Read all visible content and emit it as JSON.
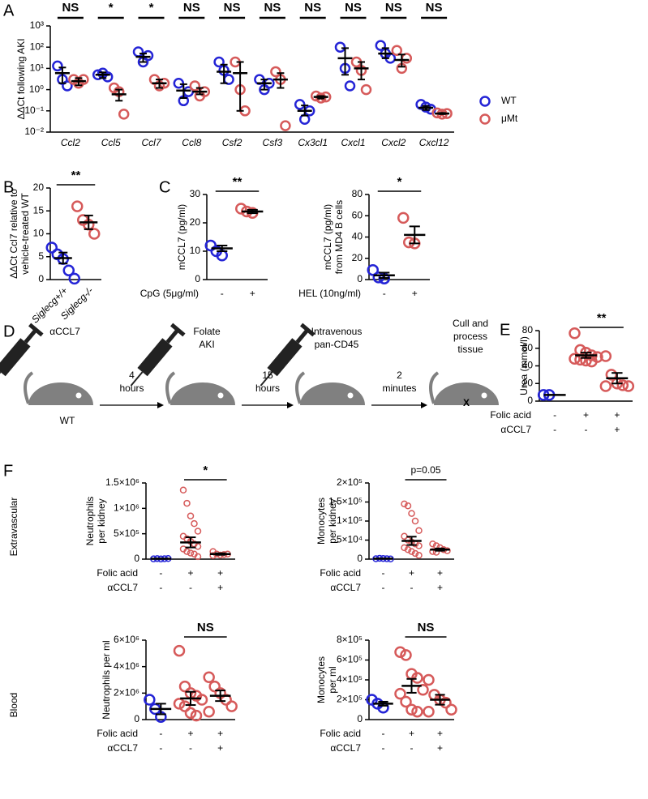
{
  "chart_data": [
    {
      "type": "strip",
      "panel": "A",
      "log": true,
      "ylabel": [
        "ΔΔCt following AKI"
      ],
      "categories": [
        "Ccl2",
        "Ccl5",
        "Ccl7",
        "Ccl8",
        "Csf2",
        "Csf3",
        "Cx3cl1",
        "Cxcl1",
        "Cxcl2",
        "Cxcl12"
      ],
      "significance": [
        "NS",
        "*",
        "*",
        "NS",
        "NS",
        "NS",
        "NS",
        "NS",
        "NS",
        "NS"
      ],
      "ylim": [
        0.01,
        1000
      ],
      "yticks": [
        {
          "value": 0.01,
          "label": "10⁻²"
        },
        {
          "value": 0.1,
          "label": "10⁻¹"
        },
        {
          "value": 1,
          "label": "10⁰"
        },
        {
          "value": 10,
          "label": "10¹"
        },
        {
          "value": 100,
          "label": "10²"
        },
        {
          "value": 1000,
          "label": "10³"
        }
      ],
      "series": [
        {
          "name": "WT",
          "color": "#2424d6",
          "values": [
            [
              13,
              3,
              1.5
            ],
            [
              5,
              6,
              4
            ],
            [
              60,
              20,
              40
            ],
            [
              2,
              0.3,
              0.8
            ],
            [
              20,
              8,
              3
            ],
            [
              3,
              1,
              2
            ],
            [
              0.2,
              0.04,
              0.1
            ],
            [
              100,
              10,
              1.5
            ],
            [
              120,
              50,
              30
            ],
            [
              0.2,
              0.15,
              0.12
            ]
          ],
          "means": [
            6,
            5,
            35,
            0.9,
            7,
            2,
            0.1,
            30,
            50,
            0.14
          ],
          "lower": [
            2,
            3.5,
            20,
            0.4,
            2,
            1,
            0.06,
            5,
            30,
            0.11
          ],
          "upper": [
            11,
            6.5,
            50,
            1.8,
            15,
            3,
            0.18,
            90,
            90,
            0.17
          ]
        },
        {
          "name": "μMt",
          "color": "#d65a5a",
          "values": [
            [
              3,
              2,
              3
            ],
            [
              1.2,
              0.8,
              0.07
            ],
            [
              3,
              1.5,
              2
            ],
            [
              1.5,
              0.5,
              0.8
            ],
            [
              20,
              1,
              0.1
            ],
            [
              7,
              3,
              0.02
            ],
            [
              0.5,
              0.4,
              0.45
            ],
            [
              20,
              8,
              1
            ],
            [
              70,
              10,
              30
            ],
            [
              0.08,
              0.07,
              0.075
            ]
          ],
          "means": [
            2.5,
            0.6,
            2,
            0.8,
            6,
            3,
            0.45,
            10,
            25,
            0.075
          ],
          "lower": [
            1.6,
            0.3,
            1.2,
            0.6,
            0.1,
            1.2,
            0.38,
            3,
            12,
            0.07
          ],
          "upper": [
            3.5,
            1,
            3,
            1.2,
            20,
            6,
            0.5,
            20,
            45,
            0.08
          ]
        }
      ]
    },
    {
      "type": "dot",
      "panel": "B",
      "ylabel": [
        "ΔΔCt Ccl7 relative to",
        "vehicle-treated WT"
      ],
      "categories": [
        "Siglecg+/+",
        "Siglecg-/-"
      ],
      "ylim": [
        0,
        20
      ],
      "yticks": [
        0,
        5,
        10,
        15,
        20
      ],
      "groups": [
        {
          "color": "#2424d6",
          "values": [
            7,
            5.5,
            4.5,
            2,
            0.2
          ],
          "mean": 4.7,
          "sem": 1.2
        },
        {
          "color": "#d65a5a",
          "values": [
            16,
            13,
            12,
            10
          ],
          "mean": 12.5,
          "sem": 1.5
        }
      ],
      "significance": [
        {
          "groups": [
            0,
            1
          ],
          "label": "**"
        }
      ]
    },
    {
      "type": "dot",
      "panel": "C",
      "ylabel": [
        "mCCL7 (pg/ml)"
      ],
      "ylim": [
        0,
        30
      ],
      "yticks": [
        0,
        10,
        20,
        30
      ],
      "conditions": [
        {
          "label": "CpG (5μg/ml)",
          "marks": [
            "-",
            "+"
          ]
        }
      ],
      "groups": [
        {
          "color": "#2424d6",
          "values": [
            12,
            10,
            8.5
          ],
          "mean": 11,
          "sem": 1
        },
        {
          "color": "#d65a5a",
          "values": [
            25,
            24,
            23.5
          ],
          "mean": 24,
          "sem": 0.6
        }
      ],
      "significance": [
        {
          "groups": [
            0,
            1
          ],
          "label": "**"
        }
      ]
    },
    {
      "type": "dot",
      "ylabel": [
        "mCCL7 (pg/ml)",
        "from MD4 B cells"
      ],
      "ylim": [
        0,
        80
      ],
      "yticks": [
        0,
        20,
        40,
        60,
        80
      ],
      "conditions": [
        {
          "label": "HEL (10ng/ml)",
          "marks": [
            "-",
            "+"
          ]
        }
      ],
      "groups": [
        {
          "color": "#2424d6",
          "values": [
            9,
            2,
            1
          ],
          "mean": 4,
          "sem": 2.5
        },
        {
          "color": "#d65a5a",
          "values": [
            58,
            35,
            34
          ],
          "mean": 42,
          "sem": 8
        }
      ],
      "significance": [
        {
          "groups": [
            0,
            1
          ],
          "label": "*"
        }
      ]
    },
    {
      "type": "dot",
      "panel": "E",
      "ylabel": [
        "Urea (mmol/l)"
      ],
      "ylim": [
        0,
        80
      ],
      "yticks": [
        0,
        20,
        40,
        60,
        80
      ],
      "conditions": [
        {
          "label": "Folic acid",
          "marks": [
            "-",
            "+",
            "+"
          ]
        },
        {
          "label": "αCCL7",
          "marks": [
            "-",
            "-",
            "+"
          ]
        }
      ],
      "groups": [
        {
          "color": "#2424d6",
          "values": [
            7,
            7
          ],
          "mean": 7,
          "sem": 0
        },
        {
          "color": "#d65a5a",
          "values": [
            77,
            58,
            55,
            52,
            50,
            48,
            47,
            46,
            45
          ],
          "mean": 52,
          "sem": 3
        },
        {
          "color": "#d65a5a",
          "values": [
            51,
            30,
            20,
            18,
            17,
            17
          ],
          "mean": 26,
          "sem": 6
        }
      ],
      "significance": [
        {
          "groups": [
            1,
            2
          ],
          "label": "**"
        }
      ]
    },
    {
      "type": "dot",
      "panel": "F",
      "row_label": "Extravascular",
      "ylabel": [
        "Neutrophils",
        "per kidney"
      ],
      "ylim": [
        0,
        1500000
      ],
      "yticks": [
        0,
        {
          "value": 500000,
          "label": "5×10⁵"
        },
        {
          "value": 1000000,
          "label": "1×10⁶"
        },
        {
          "value": 1500000,
          "label": "1.5×10⁶"
        }
      ],
      "conditions": [
        {
          "label": "Folic acid",
          "marks": [
            "-",
            "+",
            "+"
          ]
        },
        {
          "label": "αCCL7",
          "marks": [
            "-",
            "-",
            "+"
          ]
        }
      ],
      "groups": [
        {
          "color": "#2424d6",
          "values": [
            5000,
            10000,
            3000,
            8000,
            12000
          ],
          "mean": 8000,
          "sem": 2000
        },
        {
          "color": "#d65a5a",
          "values": [
            1360000,
            1100000,
            850000,
            700000,
            550000,
            450000,
            400000,
            350000,
            300000,
            250000,
            200000,
            150000,
            120000,
            100000,
            50000
          ],
          "mean": 330000,
          "sem": 100000
        },
        {
          "color": "#d65a5a",
          "values": [
            150000,
            100000,
            80000,
            90000,
            100000,
            70000
          ],
          "mean": 100000,
          "sem": 15000
        }
      ],
      "significance": [
        {
          "groups": [
            1,
            2
          ],
          "label": "*"
        }
      ]
    },
    {
      "type": "dot",
      "ylabel": [
        "Monocytes",
        "per kidney"
      ],
      "ylim": [
        0,
        200000
      ],
      "yticks": [
        0,
        {
          "value": 50000,
          "label": "5×10⁴"
        },
        {
          "value": 100000,
          "label": "1×10⁵"
        },
        {
          "value": 150000,
          "label": "1.5×10⁵"
        },
        {
          "value": 200000,
          "label": "2×10⁵"
        }
      ],
      "conditions": [
        {
          "label": "Folic acid",
          "marks": [
            "-",
            "+",
            "+"
          ]
        },
        {
          "label": "αCCL7",
          "marks": [
            "-",
            "-",
            "+"
          ]
        }
      ],
      "groups": [
        {
          "color": "#2424d6",
          "values": [
            1000,
            2000,
            1500,
            1000,
            500
          ],
          "mean": 1200,
          "sem": 300
        },
        {
          "color": "#d65a5a",
          "values": [
            145000,
            140000,
            120000,
            100000,
            75000,
            60000,
            50000,
            45000,
            40000,
            35000,
            30000,
            25000,
            20000,
            15000,
            10000
          ],
          "mean": 48000,
          "sem": 11000
        },
        {
          "color": "#d65a5a",
          "values": [
            40000,
            35000,
            30000,
            25000,
            22000,
            20000,
            18000
          ],
          "mean": 25000,
          "sem": 3000
        }
      ],
      "significance": [
        {
          "groups": [
            1,
            2
          ],
          "label": "p=0.05"
        }
      ]
    },
    {
      "type": "dot",
      "row_label": "Blood",
      "ylabel": [
        "Neutrophils per ml"
      ],
      "ylim": [
        0,
        6000000
      ],
      "yticks": [
        0,
        {
          "value": 2000000,
          "label": "2×10⁶"
        },
        {
          "value": 4000000,
          "label": "4×10⁶"
        },
        {
          "value": 6000000,
          "label": "6×10⁶"
        }
      ],
      "conditions": [
        {
          "label": "Folic acid",
          "marks": [
            "-",
            "+",
            "+"
          ]
        },
        {
          "label": "αCCL7",
          "marks": [
            "-",
            "-",
            "+"
          ]
        }
      ],
      "groups": [
        {
          "color": "#2424d6",
          "values": [
            1500000,
            800000,
            200000
          ],
          "mean": 800000,
          "sem": 400000
        },
        {
          "color": "#d65a5a",
          "values": [
            5200000,
            2500000,
            2000000,
            1800000,
            1500000,
            1200000,
            1000000,
            500000,
            300000
          ],
          "mean": 1600000,
          "sem": 500000
        },
        {
          "color": "#d65a5a",
          "values": [
            3200000,
            2500000,
            2000000,
            1500000,
            1000000,
            600000
          ],
          "mean": 1800000,
          "sem": 400000
        }
      ],
      "significance": [
        {
          "groups": [
            1,
            2
          ],
          "label": "NS"
        }
      ]
    },
    {
      "type": "dot",
      "ylabel": [
        "Monocytes",
        "per ml"
      ],
      "ylim": [
        0,
        800000
      ],
      "yticks": [
        0,
        {
          "value": 200000,
          "label": "2×10⁵"
        },
        {
          "value": 400000,
          "label": "4×10⁵"
        },
        {
          "value": 600000,
          "label": "6×10⁵"
        },
        {
          "value": 800000,
          "label": "8×10⁵"
        }
      ],
      "conditions": [
        {
          "label": "Folic acid",
          "marks": [
            "-",
            "+",
            "+"
          ]
        },
        {
          "label": "αCCL7",
          "marks": [
            "-",
            "-",
            "+"
          ]
        }
      ],
      "groups": [
        {
          "color": "#2424d6",
          "values": [
            200000,
            160000,
            120000
          ],
          "mean": 160000,
          "sem": 20000
        },
        {
          "color": "#d65a5a",
          "values": [
            680000,
            650000,
            460000,
            420000,
            300000,
            260000,
            180000,
            100000,
            80000
          ],
          "mean": 340000,
          "sem": 70000
        },
        {
          "color": "#d65a5a",
          "values": [
            400000,
            250000,
            200000,
            170000,
            100000,
            80000
          ],
          "mean": 200000,
          "sem": 50000
        }
      ],
      "significance": [
        {
          "groups": [
            1,
            2
          ],
          "label": "NS"
        }
      ]
    }
  ],
  "diagram": {
    "panel": "D",
    "steps": [
      {
        "lines": [
          "αCCL7"
        ],
        "below": "WT"
      },
      {
        "lines": [
          "Folate",
          "AKI"
        ]
      },
      {
        "lines": [
          "Intravenous",
          "pan-CD45"
        ]
      },
      {
        "lines": [
          "Cull and",
          "process",
          "tissue"
        ],
        "mark": "X"
      }
    ],
    "arrows": [
      [
        "4",
        "hours"
      ],
      [
        "15",
        "hours"
      ],
      [
        "2",
        "minutes"
      ]
    ]
  }
}
